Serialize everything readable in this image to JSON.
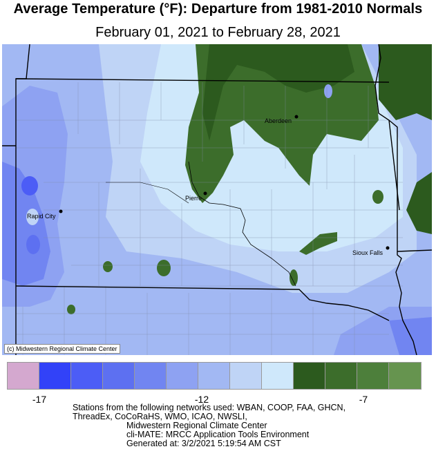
{
  "title": "Average Temperature (°F): Departure from 1981-2010 Normals",
  "subtitle": "February 01, 2021 to February 28, 2021",
  "copyright": "(c) Midwestern Regional Climate Center",
  "cities": [
    {
      "name": "Aberdeen"
    },
    {
      "name": "Pierre"
    },
    {
      "name": "Rapid City"
    },
    {
      "name": "Sioux Falls"
    }
  ],
  "legend": {
    "colors": [
      "#d4a8cf",
      "#3242f8",
      "#4c5df6",
      "#5d70f1",
      "#7185f1",
      "#8ea2f2",
      "#a2b8f3",
      "#bfd4f6",
      "#cfe8fb",
      "#2c5a1e",
      "#3c6d2b",
      "#4d7f3b",
      "#66944f"
    ],
    "tick_labels": [
      "-17",
      "-12",
      "-7"
    ]
  },
  "footer": {
    "line1": "Stations from the following networks used: WBAN, COOP, FAA, GHCN,",
    "line2": "ThreadEx, CoCoRaHS, WMO, ICAO, NWSLI,",
    "line3": "Midwestern Regional Climate Center",
    "line4": "cli-MATE: MRCC Application Tools Environment",
    "line5": "Generated at: 3/2/2021 5:19:54 AM CST"
  }
}
